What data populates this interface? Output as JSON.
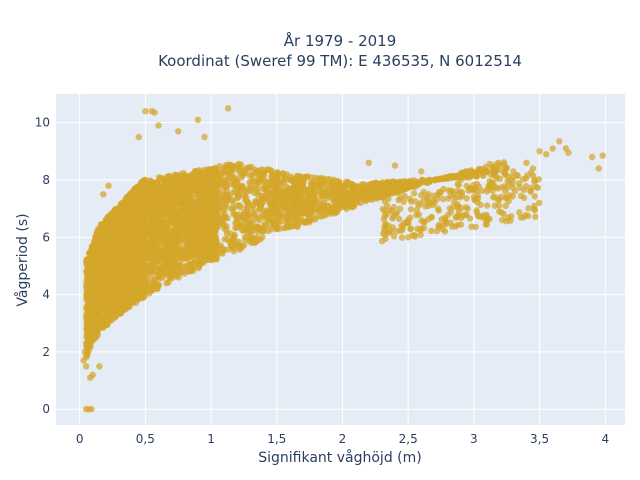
{
  "chart_data": {
    "type": "scatter",
    "title_line1": "År 1979 - 2019",
    "title_line2": "Koordinat (Sweref 99 TM): E 436535, N 6012514",
    "xlabel": "Signifikant våghöjd (m)",
    "ylabel": "Vågperiod (s)",
    "xlim": [
      -0.18,
      4.15
    ],
    "ylim": [
      -0.55,
      11.0
    ],
    "grid": true,
    "x_ticks": [
      0,
      0.5,
      1,
      1.5,
      2,
      2.5,
      3,
      3.5,
      4
    ],
    "x_tick_labels": [
      "0",
      "0,5",
      "1",
      "1,5",
      "2",
      "2,5",
      "3",
      "3,5",
      "4"
    ],
    "y_ticks": [
      0,
      2,
      4,
      6,
      8,
      10
    ],
    "y_tick_labels": [
      "0",
      "2",
      "4",
      "6",
      "8",
      "10"
    ],
    "colors": {
      "marker": "#D4A62A",
      "plot_background": "#E5ECF6",
      "grid": "#ffffff"
    },
    "point_opacity": 0.72,
    "density_regions": [
      {
        "x_range": [
          0.05,
          0.45
        ],
        "y_range": [
          1.2,
          8.0
        ]
      },
      {
        "x_range": [
          0.45,
          1.0
        ],
        "y_range": [
          2.6,
          9.0
        ]
      },
      {
        "x_range": [
          1.0,
          1.7
        ],
        "y_range": [
          3.9,
          8.8
        ]
      },
      {
        "x_range": [
          1.7,
          2.4
        ],
        "y_range": [
          4.8,
          7.6
        ]
      },
      {
        "x_range": [
          2.4,
          3.2
        ],
        "y_range": [
          5.9,
          8.5
        ]
      }
    ],
    "points": [
      [
        0.05,
        0.0
      ],
      [
        0.07,
        0.0
      ],
      [
        0.09,
        0.0
      ],
      [
        0.5,
        10.4
      ],
      [
        0.55,
        10.4
      ],
      [
        0.57,
        10.35
      ],
      [
        1.13,
        10.5
      ],
      [
        0.9,
        10.1
      ],
      [
        0.6,
        9.9
      ],
      [
        0.45,
        9.5
      ],
      [
        0.75,
        9.7
      ],
      [
        0.95,
        9.5
      ],
      [
        0.22,
        7.8
      ],
      [
        0.18,
        7.5
      ],
      [
        0.12,
        6.0
      ],
      [
        0.1,
        5.5
      ],
      [
        0.06,
        5.2
      ],
      [
        0.04,
        2.0
      ],
      [
        0.03,
        1.7
      ],
      [
        0.05,
        1.5
      ],
      [
        0.08,
        1.1
      ],
      [
        0.1,
        1.2
      ],
      [
        0.15,
        1.5
      ],
      [
        2.2,
        8.6
      ],
      [
        2.4,
        8.5
      ],
      [
        2.6,
        8.3
      ],
      [
        2.8,
        8.1
      ],
      [
        2.9,
        8.0
      ],
      [
        3.0,
        8.2
      ],
      [
        3.1,
        8.3
      ],
      [
        3.2,
        8.5
      ],
      [
        3.3,
        8.3
      ],
      [
        3.4,
        8.6
      ],
      [
        3.45,
        8.4
      ],
      [
        3.5,
        9.0
      ],
      [
        3.55,
        8.9
      ],
      [
        3.6,
        9.1
      ],
      [
        3.65,
        9.35
      ],
      [
        3.7,
        9.1
      ],
      [
        3.72,
        8.95
      ],
      [
        3.9,
        8.8
      ],
      [
        3.98,
        8.85
      ],
      [
        3.95,
        8.4
      ],
      [
        3.1,
        7.6
      ],
      [
        3.0,
        7.4
      ],
      [
        2.7,
        7.2
      ],
      [
        2.5,
        6.6
      ],
      [
        2.35,
        6.4
      ],
      [
        2.5,
        6.0
      ]
    ]
  }
}
